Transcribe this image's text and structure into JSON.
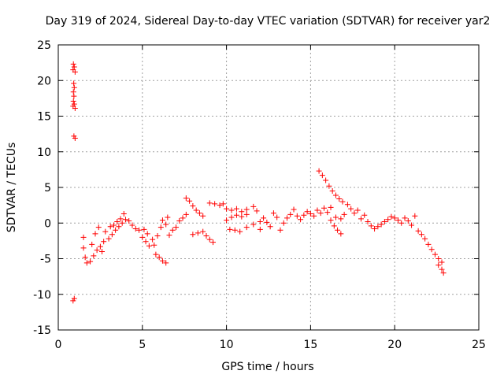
{
  "chart_data": {
    "type": "scatter",
    "title": "Day 319 of 2024, Sidereal Day-to-day VTEC variation (SDTVAR) for receiver yar2",
    "xlabel": "GPS time / hours",
    "ylabel": "SDTVAR / TECUs",
    "xlim": [
      0,
      25
    ],
    "ylim": [
      -15,
      25
    ],
    "xticks": [
      0,
      5,
      10,
      15,
      20,
      25
    ],
    "xtick_labels": [
      "0",
      "5",
      "10",
      "15",
      "20",
      "25"
    ],
    "yticks": [
      -15,
      -10,
      -5,
      0,
      5,
      10,
      15,
      20,
      25
    ],
    "ytick_labels": [
      "-15",
      "-10",
      "-5",
      "0",
      "5",
      "10",
      "15",
      "20",
      "25"
    ],
    "grid": true,
    "marker": "plus",
    "color": "#ff0000",
    "series": [
      {
        "name": "SDTVAR",
        "points": [
          [
            0.9,
            22.3
          ],
          [
            0.95,
            21.9
          ],
          [
            0.88,
            21.5
          ],
          [
            1.0,
            21.2
          ],
          [
            0.92,
            19.6
          ],
          [
            0.95,
            19.0
          ],
          [
            0.9,
            18.4
          ],
          [
            0.93,
            17.8
          ],
          [
            0.9,
            17.1
          ],
          [
            0.95,
            16.7
          ],
          [
            0.88,
            16.4
          ],
          [
            1.0,
            16.1
          ],
          [
            0.93,
            12.2
          ],
          [
            1.0,
            11.9
          ],
          [
            0.95,
            -10.6
          ],
          [
            0.88,
            -10.9
          ],
          [
            1.5,
            -2.0
          ],
          [
            1.5,
            -3.5
          ],
          [
            1.6,
            -4.8
          ],
          [
            1.7,
            -5.6
          ],
          [
            1.9,
            -5.4
          ],
          [
            2.0,
            -3.0
          ],
          [
            2.1,
            -4.6
          ],
          [
            2.2,
            -1.5
          ],
          [
            2.3,
            -3.8
          ],
          [
            2.4,
            -0.6
          ],
          [
            2.5,
            -3.3
          ],
          [
            2.6,
            -4.0
          ],
          [
            2.7,
            -2.6
          ],
          [
            2.8,
            -1.2
          ],
          [
            3.0,
            -2.2
          ],
          [
            3.1,
            -0.5
          ],
          [
            3.2,
            -1.6
          ],
          [
            3.3,
            -0.3
          ],
          [
            3.4,
            -1.0
          ],
          [
            3.5,
            0.2
          ],
          [
            3.6,
            -0.5
          ],
          [
            3.7,
            0.6
          ],
          [
            3.8,
            0.0
          ],
          [
            3.9,
            1.3
          ],
          [
            4.0,
            0.5
          ],
          [
            4.2,
            0.3
          ],
          [
            4.4,
            -0.3
          ],
          [
            4.6,
            -0.8
          ],
          [
            4.8,
            -1.0
          ],
          [
            5.0,
            -2.0
          ],
          [
            5.1,
            -0.9
          ],
          [
            5.2,
            -2.6
          ],
          [
            5.3,
            -1.5
          ],
          [
            5.4,
            -3.2
          ],
          [
            5.6,
            -2.3
          ],
          [
            5.7,
            -3.1
          ],
          [
            5.8,
            -4.4
          ],
          [
            6.0,
            -4.8
          ],
          [
            6.2,
            -5.3
          ],
          [
            6.4,
            -5.6
          ],
          [
            5.9,
            -1.8
          ],
          [
            6.1,
            -0.6
          ],
          [
            6.2,
            0.4
          ],
          [
            6.4,
            -0.2
          ],
          [
            6.5,
            0.8
          ],
          [
            6.6,
            -1.7
          ],
          [
            6.8,
            -1.0
          ],
          [
            7.0,
            -0.6
          ],
          [
            7.2,
            0.3
          ],
          [
            7.4,
            0.7
          ],
          [
            7.6,
            1.2
          ],
          [
            7.6,
            3.5
          ],
          [
            7.8,
            3.1
          ],
          [
            8.0,
            2.4
          ],
          [
            8.2,
            1.8
          ],
          [
            8.4,
            1.4
          ],
          [
            8.6,
            1.0
          ],
          [
            8.8,
            -1.8
          ],
          [
            9.0,
            -2.3
          ],
          [
            9.2,
            -2.7
          ],
          [
            8.0,
            -1.6
          ],
          [
            8.3,
            -1.4
          ],
          [
            8.6,
            -1.2
          ],
          [
            9.0,
            2.8
          ],
          [
            9.3,
            2.7
          ],
          [
            9.6,
            2.5
          ],
          [
            9.8,
            2.7
          ],
          [
            10.0,
            2.0
          ],
          [
            10.3,
            1.8
          ],
          [
            10.6,
            2.0
          ],
          [
            10.9,
            1.6
          ],
          [
            11.2,
            1.9
          ],
          [
            11.6,
            2.3
          ],
          [
            11.8,
            1.7
          ],
          [
            10.0,
            0.4
          ],
          [
            10.3,
            0.8
          ],
          [
            10.6,
            1.1
          ],
          [
            10.9,
            0.9
          ],
          [
            11.2,
            1.2
          ],
          [
            10.2,
            -0.9
          ],
          [
            10.5,
            -1.0
          ],
          [
            10.8,
            -1.2
          ],
          [
            11.2,
            -0.6
          ],
          [
            11.6,
            -0.2
          ],
          [
            12.0,
            -0.9
          ],
          [
            12.0,
            0.2
          ],
          [
            12.2,
            0.7
          ],
          [
            12.4,
            0.1
          ],
          [
            12.6,
            -0.5
          ],
          [
            12.8,
            1.4
          ],
          [
            13.0,
            0.8
          ],
          [
            13.2,
            -1.0
          ],
          [
            13.4,
            0.0
          ],
          [
            13.6,
            0.7
          ],
          [
            13.8,
            1.2
          ],
          [
            14.0,
            1.9
          ],
          [
            14.2,
            1.0
          ],
          [
            14.4,
            0.5
          ],
          [
            14.6,
            1.1
          ],
          [
            14.8,
            1.6
          ],
          [
            15.0,
            1.3
          ],
          [
            15.2,
            1.0
          ],
          [
            15.4,
            1.8
          ],
          [
            15.6,
            1.4
          ],
          [
            15.8,
            2.1
          ],
          [
            16.0,
            1.5
          ],
          [
            16.2,
            2.2
          ],
          [
            15.5,
            7.3
          ],
          [
            15.7,
            6.7
          ],
          [
            15.9,
            6.0
          ],
          [
            16.1,
            5.2
          ],
          [
            16.3,
            4.5
          ],
          [
            16.5,
            3.9
          ],
          [
            16.7,
            3.4
          ],
          [
            16.9,
            3.0
          ],
          [
            16.2,
            0.4
          ],
          [
            16.4,
            -0.4
          ],
          [
            16.6,
            -1.0
          ],
          [
            16.8,
            -1.5
          ],
          [
            16.5,
            0.8
          ],
          [
            16.8,
            0.6
          ],
          [
            17.0,
            1.2
          ],
          [
            17.2,
            2.6
          ],
          [
            17.4,
            2.0
          ],
          [
            17.6,
            1.4
          ],
          [
            17.8,
            1.8
          ],
          [
            18.0,
            0.6
          ],
          [
            18.2,
            1.1
          ],
          [
            18.4,
            0.2
          ],
          [
            18.6,
            -0.4
          ],
          [
            18.8,
            -0.8
          ],
          [
            19.0,
            -0.5
          ],
          [
            19.2,
            -0.2
          ],
          [
            19.4,
            0.2
          ],
          [
            19.6,
            0.5
          ],
          [
            19.8,
            0.9
          ],
          [
            20.0,
            0.7
          ],
          [
            20.2,
            0.4
          ],
          [
            20.4,
            0.0
          ],
          [
            20.6,
            0.7
          ],
          [
            20.8,
            0.3
          ],
          [
            21.0,
            -0.3
          ],
          [
            21.2,
            1.0
          ],
          [
            21.4,
            -1.1
          ],
          [
            21.6,
            -1.6
          ],
          [
            21.8,
            -2.2
          ],
          [
            22.0,
            -3.0
          ],
          [
            22.2,
            -3.7
          ],
          [
            22.4,
            -4.4
          ],
          [
            22.6,
            -5.0
          ],
          [
            22.8,
            -5.5
          ],
          [
            22.6,
            -5.9
          ],
          [
            22.8,
            -6.5
          ],
          [
            22.9,
            -7.0
          ]
        ]
      }
    ]
  }
}
